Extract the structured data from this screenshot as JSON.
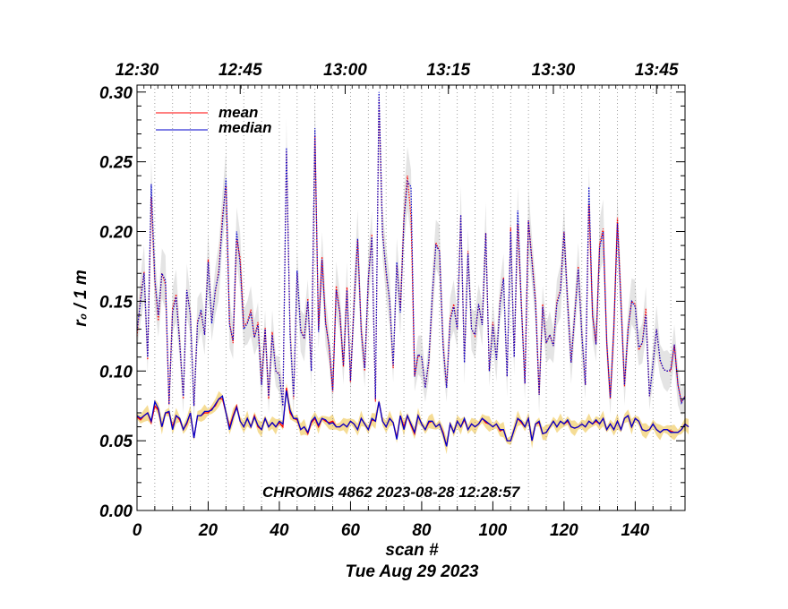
{
  "chart_data": {
    "type": "line",
    "xlabel": "scan #",
    "ylabel": "r₀ / 1 m",
    "xlim": [
      0,
      154
    ],
    "ylim": [
      0.0,
      0.305
    ],
    "x_ticks": [
      0,
      20,
      40,
      60,
      80,
      100,
      120,
      140
    ],
    "y_ticks": [
      "0.00",
      "0.05",
      "0.10",
      "0.15",
      "0.20",
      "0.25",
      "0.30"
    ],
    "top_axis_ticks": [
      {
        "label": "12:30",
        "scan": 0
      },
      {
        "label": "12:45",
        "scan": 29
      },
      {
        "label": "13:00",
        "scan": 58.5
      },
      {
        "label": "13:15",
        "scan": 87.5
      },
      {
        "label": "13:30",
        "scan": 117
      },
      {
        "label": "13:45",
        "scan": 146
      }
    ],
    "annotation": "CHROMIS 4862 2023-08-28 12:28:57",
    "date_label": "Tue Aug 29 2023",
    "grid": "vertical dotted lines every 5 scans",
    "legend_position": "top-left",
    "colors": {
      "mean": "#ff0000",
      "median": "#0000cc",
      "upper_band": "#e4e4e4",
      "lower_band": "#f5dc95"
    },
    "series": [
      {
        "name": "mean",
        "style": "dotted upper / solid lower",
        "upper_values": [
          0.125,
          0.153,
          0.171,
          0.108,
          0.225,
          0.165,
          0.136,
          0.17,
          0.162,
          0.076,
          0.145,
          0.155,
          0.121,
          0.08,
          0.158,
          0.141,
          0.075,
          0.136,
          0.142,
          0.126,
          0.18,
          0.136,
          0.156,
          0.173,
          0.211,
          0.233,
          0.135,
          0.12,
          0.195,
          0.181,
          0.132,
          0.135,
          0.144,
          0.124,
          0.135,
          0.09,
          0.131,
          0.08,
          0.128,
          0.1,
          0.098,
          0.075,
          0.258,
          0.13,
          0.08,
          0.17,
          0.13,
          0.123,
          0.152,
          0.1,
          0.269,
          0.13,
          0.182,
          0.136,
          0.116,
          0.085,
          0.161,
          0.142,
          0.103,
          0.16,
          0.092,
          0.15,
          0.194,
          0.13,
          0.1,
          0.165,
          0.198,
          0.078,
          0.296,
          0.2,
          0.17,
          0.15,
          0.102,
          0.176,
          0.144,
          0.21,
          0.24,
          0.21,
          0.096,
          0.111,
          0.11,
          0.088,
          0.106,
          0.153,
          0.192,
          0.186,
          0.12,
          0.088,
          0.138,
          0.148,
          0.13,
          0.212,
          0.106,
          0.186,
          0.13,
          0.125,
          0.148,
          0.133,
          0.199,
          0.1,
          0.135,
          0.108,
          0.15,
          0.167,
          0.096,
          0.203,
          0.11,
          0.205,
          0.149,
          0.091,
          0.208,
          0.18,
          0.15,
          0.083,
          0.148,
          0.12,
          0.126,
          0.118,
          0.15,
          0.158,
          0.2,
          0.15,
          0.106,
          0.14,
          0.175,
          0.126,
          0.09,
          0.22,
          0.14,
          0.119,
          0.191,
          0.202,
          0.12,
          0.08,
          0.13,
          0.21,
          0.151,
          0.089,
          0.13,
          0.15,
          0.148,
          0.115,
          0.12,
          0.145,
          0.082,
          0.105,
          0.13,
          0.107,
          0.101,
          0.1,
          0.1,
          0.119,
          0.09,
          0.078,
          0.082
        ],
        "lower_values": [
          0.067,
          0.065,
          0.068,
          0.07,
          0.063,
          0.075,
          0.072,
          0.06,
          0.07,
          0.07,
          0.06,
          0.068,
          0.065,
          0.058,
          0.062,
          0.07,
          0.052,
          0.068,
          0.068,
          0.07,
          0.07,
          0.073,
          0.075,
          0.08,
          0.08,
          0.07,
          0.06,
          0.068,
          0.075,
          0.064,
          0.06,
          0.066,
          0.06,
          0.068,
          0.06,
          0.058,
          0.066,
          0.06,
          0.063,
          0.06,
          0.063,
          0.06,
          0.088,
          0.07,
          0.066,
          0.065,
          0.058,
          0.06,
          0.055,
          0.063,
          0.066,
          0.06,
          0.066,
          0.064,
          0.063,
          0.064,
          0.06,
          0.06,
          0.062,
          0.06,
          0.064,
          0.062,
          0.058,
          0.066,
          0.062,
          0.058,
          0.065,
          0.064,
          0.078,
          0.064,
          0.06,
          0.066,
          0.063,
          0.052,
          0.068,
          0.06,
          0.068,
          0.061,
          0.055,
          0.068,
          0.062,
          0.058,
          0.063,
          0.064,
          0.06,
          0.062,
          0.056,
          0.046,
          0.062,
          0.056,
          0.064,
          0.06,
          0.065,
          0.058,
          0.062,
          0.06,
          0.062,
          0.066,
          0.063,
          0.062,
          0.06,
          0.062,
          0.057,
          0.058,
          0.05,
          0.05,
          0.058,
          0.066,
          0.063,
          0.06,
          0.066,
          0.05,
          0.062,
          0.063,
          0.055,
          0.056,
          0.06,
          0.064,
          0.06,
          0.064,
          0.062,
          0.064,
          0.06,
          0.059,
          0.06,
          0.062,
          0.06,
          0.064,
          0.062,
          0.064,
          0.062,
          0.066,
          0.058,
          0.062,
          0.058,
          0.064,
          0.058,
          0.066,
          0.068,
          0.06,
          0.066,
          0.064,
          0.058,
          0.057,
          0.058,
          0.062,
          0.058,
          0.056,
          0.058,
          0.058,
          0.057,
          0.056,
          0.056,
          0.058,
          0.062,
          0.06
        ]
      },
      {
        "name": "median",
        "style": "dotted upper / solid lower",
        "upper_values": [
          0.129,
          0.15,
          0.17,
          0.11,
          0.234,
          0.166,
          0.14,
          0.17,
          0.165,
          0.076,
          0.142,
          0.153,
          0.12,
          0.082,
          0.158,
          0.14,
          0.075,
          0.134,
          0.144,
          0.126,
          0.178,
          0.134,
          0.158,
          0.17,
          0.206,
          0.238,
          0.133,
          0.122,
          0.2,
          0.176,
          0.13,
          0.134,
          0.142,
          0.124,
          0.133,
          0.09,
          0.13,
          0.082,
          0.126,
          0.1,
          0.097,
          0.075,
          0.26,
          0.126,
          0.082,
          0.172,
          0.128,
          0.124,
          0.15,
          0.1,
          0.274,
          0.128,
          0.18,
          0.134,
          0.118,
          0.086,
          0.158,
          0.142,
          0.104,
          0.158,
          0.093,
          0.148,
          0.195,
          0.128,
          0.102,
          0.166,
          0.196,
          0.08,
          0.3,
          0.198,
          0.172,
          0.15,
          0.104,
          0.178,
          0.142,
          0.208,
          0.236,
          0.232,
          0.096,
          0.112,
          0.11,
          0.088,
          0.108,
          0.155,
          0.19,
          0.186,
          0.118,
          0.088,
          0.136,
          0.146,
          0.13,
          0.212,
          0.106,
          0.184,
          0.13,
          0.126,
          0.148,
          0.133,
          0.199,
          0.1,
          0.133,
          0.108,
          0.148,
          0.166,
          0.096,
          0.2,
          0.11,
          0.215,
          0.147,
          0.091,
          0.208,
          0.178,
          0.148,
          0.083,
          0.146,
          0.12,
          0.126,
          0.118,
          0.148,
          0.157,
          0.2,
          0.148,
          0.106,
          0.14,
          0.173,
          0.126,
          0.09,
          0.232,
          0.14,
          0.119,
          0.188,
          0.2,
          0.12,
          0.081,
          0.13,
          0.206,
          0.148,
          0.09,
          0.13,
          0.15,
          0.146,
          0.117,
          0.12,
          0.14,
          0.082,
          0.105,
          0.13,
          0.108,
          0.101,
          0.1,
          0.101,
          0.119,
          0.09,
          0.077,
          0.082
        ],
        "lower_values": [
          0.068,
          0.066,
          0.068,
          0.07,
          0.064,
          0.078,
          0.073,
          0.06,
          0.07,
          0.071,
          0.058,
          0.068,
          0.066,
          0.058,
          0.063,
          0.07,
          0.052,
          0.068,
          0.068,
          0.071,
          0.071,
          0.072,
          0.076,
          0.08,
          0.082,
          0.07,
          0.058,
          0.067,
          0.074,
          0.064,
          0.06,
          0.066,
          0.06,
          0.067,
          0.061,
          0.058,
          0.066,
          0.06,
          0.063,
          0.06,
          0.064,
          0.062,
          0.086,
          0.072,
          0.066,
          0.066,
          0.058,
          0.06,
          0.056,
          0.064,
          0.067,
          0.061,
          0.066,
          0.065,
          0.062,
          0.063,
          0.06,
          0.06,
          0.062,
          0.06,
          0.064,
          0.062,
          0.058,
          0.066,
          0.062,
          0.058,
          0.066,
          0.064,
          0.078,
          0.064,
          0.06,
          0.066,
          0.063,
          0.051,
          0.068,
          0.058,
          0.068,
          0.062,
          0.056,
          0.068,
          0.062,
          0.058,
          0.064,
          0.064,
          0.06,
          0.062,
          0.055,
          0.046,
          0.062,
          0.056,
          0.064,
          0.06,
          0.066,
          0.058,
          0.062,
          0.06,
          0.062,
          0.066,
          0.064,
          0.062,
          0.06,
          0.062,
          0.058,
          0.058,
          0.05,
          0.05,
          0.058,
          0.066,
          0.064,
          0.06,
          0.066,
          0.05,
          0.062,
          0.064,
          0.055,
          0.056,
          0.06,
          0.064,
          0.06,
          0.064,
          0.062,
          0.065,
          0.06,
          0.059,
          0.06,
          0.062,
          0.06,
          0.064,
          0.062,
          0.065,
          0.062,
          0.066,
          0.058,
          0.062,
          0.058,
          0.064,
          0.058,
          0.066,
          0.068,
          0.06,
          0.066,
          0.064,
          0.058,
          0.057,
          0.058,
          0.062,
          0.058,
          0.056,
          0.058,
          0.058,
          0.056,
          0.056,
          0.056,
          0.058,
          0.062,
          0.06
        ]
      }
    ]
  }
}
